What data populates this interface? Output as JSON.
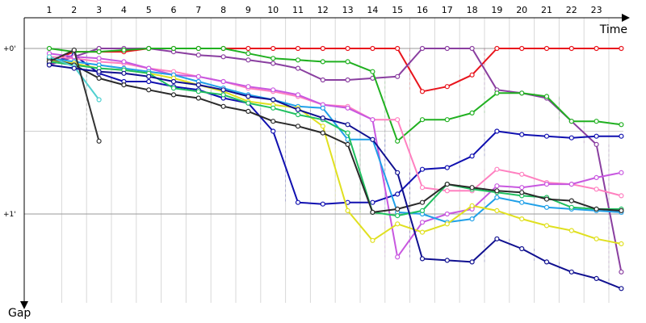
{
  "chart_data": {
    "type": "line",
    "xlabel": "Time",
    "ylabel": "Gap",
    "x_ticks": [
      "1",
      "2",
      "3",
      "4",
      "5",
      "6",
      "7",
      "8",
      "9",
      "10",
      "11",
      "12",
      "13",
      "14",
      "15",
      "16",
      "17",
      "18",
      "19",
      "20",
      "21",
      "22",
      "23"
    ],
    "y_ticks": [
      {
        "value": 0,
        "label": "+0'"
      },
      {
        "value": 1,
        "label": "+1'"
      }
    ],
    "ylim": [
      -0.12,
      1.5
    ],
    "xlim": [
      0.5,
      24.5
    ],
    "grid": true,
    "legend": "none",
    "series": [
      {
        "color": "#e8141c",
        "points": [
          [
            1,
            0.08
          ],
          [
            2,
            0.02
          ],
          [
            3,
            0.02
          ],
          [
            4,
            0.02
          ],
          [
            5,
            0.0
          ],
          [
            6,
            0.0
          ],
          [
            7,
            0.0
          ],
          [
            8,
            0.0
          ],
          [
            9,
            0.0
          ],
          [
            10,
            0.0
          ],
          [
            11,
            0.0
          ],
          [
            12,
            0.0
          ],
          [
            13,
            0.0
          ],
          [
            14,
            0.0
          ],
          [
            15,
            0.0
          ],
          [
            16,
            0.26
          ],
          [
            17,
            0.23
          ],
          [
            18,
            0.16
          ],
          [
            19,
            0.0
          ],
          [
            20,
            0.0
          ],
          [
            21,
            0.0
          ],
          [
            22,
            0.0
          ],
          [
            23,
            0.0
          ],
          [
            24,
            0.0
          ]
        ]
      },
      {
        "color": "#8a3fa0",
        "points": [
          [
            1,
            0.1
          ],
          [
            2,
            0.05
          ],
          [
            3,
            0.0
          ],
          [
            4,
            0.0
          ],
          [
            5,
            0.0
          ],
          [
            6,
            0.02
          ],
          [
            7,
            0.04
          ],
          [
            8,
            0.05
          ],
          [
            9,
            0.07
          ],
          [
            10,
            0.09
          ],
          [
            11,
            0.12
          ],
          [
            12,
            0.19
          ],
          [
            13,
            0.19
          ],
          [
            14,
            0.18
          ],
          [
            15,
            0.17
          ],
          [
            16,
            0.0
          ],
          [
            17,
            0.0
          ],
          [
            18,
            0.0
          ],
          [
            19,
            0.25
          ],
          [
            20,
            0.27
          ],
          [
            21,
            0.3
          ],
          [
            22,
            0.44
          ],
          [
            23,
            0.58
          ],
          [
            24,
            1.35
          ]
        ]
      },
      {
        "color": "#20b020",
        "points": [
          [
            1,
            0.0
          ],
          [
            2,
            0.02
          ],
          [
            3,
            0.02
          ],
          [
            4,
            0.01
          ],
          [
            5,
            0.0
          ],
          [
            6,
            0.0
          ],
          [
            7,
            0.0
          ],
          [
            8,
            0.0
          ],
          [
            9,
            0.03
          ],
          [
            10,
            0.06
          ],
          [
            11,
            0.07
          ],
          [
            12,
            0.08
          ],
          [
            13,
            0.08
          ],
          [
            14,
            0.14
          ],
          [
            15,
            0.56
          ],
          [
            16,
            0.43
          ],
          [
            17,
            0.43
          ],
          [
            18,
            0.39
          ],
          [
            19,
            0.27
          ],
          [
            20,
            0.27
          ],
          [
            21,
            0.29
          ],
          [
            22,
            0.44
          ],
          [
            23,
            0.44
          ],
          [
            24,
            0.46
          ]
        ]
      },
      {
        "color": "#1010b0",
        "points": [
          [
            1,
            0.09
          ],
          [
            2,
            0.04
          ],
          [
            3,
            0.15
          ],
          [
            4,
            0.2
          ],
          [
            5,
            0.2
          ],
          [
            6,
            0.23
          ],
          [
            7,
            0.25
          ],
          [
            8,
            0.3
          ],
          [
            9,
            0.33
          ],
          [
            10,
            0.5
          ],
          [
            11,
            0.93
          ],
          [
            12,
            0.94
          ],
          [
            13,
            0.93
          ],
          [
            14,
            0.93
          ],
          [
            15,
            0.88
          ],
          [
            16,
            0.73
          ],
          [
            17,
            0.72
          ],
          [
            18,
            0.65
          ],
          [
            19,
            0.5
          ],
          [
            20,
            0.52
          ],
          [
            21,
            0.53
          ],
          [
            22,
            0.54
          ],
          [
            23,
            0.53
          ],
          [
            24,
            0.53
          ]
        ]
      },
      {
        "color": "#ff80c0",
        "points": [
          [
            1,
            0.05
          ],
          [
            2,
            0.06
          ],
          [
            3,
            0.08
          ],
          [
            4,
            0.09
          ],
          [
            5,
            0.12
          ],
          [
            6,
            0.14
          ],
          [
            7,
            0.17
          ],
          [
            8,
            0.2
          ],
          [
            9,
            0.24
          ],
          [
            10,
            0.26
          ],
          [
            11,
            0.29
          ],
          [
            12,
            0.34
          ],
          [
            13,
            0.35
          ],
          [
            14,
            0.43
          ],
          [
            15,
            0.43
          ],
          [
            16,
            0.84
          ],
          [
            17,
            0.86
          ],
          [
            18,
            0.86
          ],
          [
            19,
            0.73
          ],
          [
            20,
            0.76
          ],
          [
            21,
            0.81
          ],
          [
            22,
            0.82
          ],
          [
            23,
            0.85
          ],
          [
            24,
            0.89
          ]
        ]
      },
      {
        "color": "#c858e0",
        "points": [
          [
            1,
            0.03
          ],
          [
            2,
            0.05
          ],
          [
            3,
            0.06
          ],
          [
            4,
            0.08
          ],
          [
            5,
            0.12
          ],
          [
            6,
            0.16
          ],
          [
            7,
            0.17
          ],
          [
            8,
            0.2
          ],
          [
            9,
            0.23
          ],
          [
            10,
            0.25
          ],
          [
            11,
            0.28
          ],
          [
            12,
            0.34
          ],
          [
            13,
            0.36
          ],
          [
            14,
            0.43
          ],
          [
            15,
            1.26
          ],
          [
            16,
            1.05
          ],
          [
            17,
            1.0
          ],
          [
            18,
            0.97
          ],
          [
            19,
            0.83
          ],
          [
            20,
            0.84
          ],
          [
            21,
            0.82
          ],
          [
            22,
            0.82
          ],
          [
            23,
            0.78
          ],
          [
            24,
            0.75
          ]
        ]
      },
      {
        "color": "#20a0e8",
        "points": [
          [
            1,
            0.06
          ],
          [
            2,
            0.08
          ],
          [
            3,
            0.1
          ],
          [
            4,
            0.12
          ],
          [
            5,
            0.14
          ],
          [
            6,
            0.16
          ],
          [
            7,
            0.2
          ],
          [
            8,
            0.24
          ],
          [
            9,
            0.28
          ],
          [
            10,
            0.31
          ],
          [
            11,
            0.35
          ],
          [
            12,
            0.36
          ],
          [
            13,
            0.55
          ],
          [
            14,
            0.55
          ],
          [
            15,
            0.99
          ],
          [
            16,
            1.0
          ],
          [
            17,
            1.05
          ],
          [
            18,
            1.03
          ],
          [
            19,
            0.9
          ],
          [
            20,
            0.93
          ],
          [
            21,
            0.96
          ],
          [
            22,
            0.97
          ],
          [
            23,
            0.98
          ],
          [
            24,
            0.99
          ]
        ]
      },
      {
        "color": "#e0e020",
        "points": [
          [
            1,
            0.07
          ],
          [
            2,
            0.09
          ],
          [
            3,
            0.12
          ],
          [
            4,
            0.13
          ],
          [
            5,
            0.15
          ],
          [
            6,
            0.18
          ],
          [
            7,
            0.22
          ],
          [
            8,
            0.26
          ],
          [
            9,
            0.32
          ],
          [
            10,
            0.34
          ],
          [
            11,
            0.36
          ],
          [
            12,
            0.47
          ],
          [
            13,
            0.98
          ],
          [
            14,
            1.16
          ],
          [
            15,
            1.06
          ],
          [
            16,
            1.11
          ],
          [
            17,
            1.06
          ],
          [
            18,
            0.95
          ],
          [
            19,
            0.98
          ],
          [
            20,
            1.03
          ],
          [
            21,
            1.07
          ],
          [
            22,
            1.1
          ],
          [
            23,
            1.15
          ],
          [
            24,
            1.18
          ]
        ]
      },
      {
        "color": "#20c060",
        "points": [
          [
            1,
            0.08
          ],
          [
            2,
            0.1
          ],
          [
            3,
            0.12
          ],
          [
            4,
            0.13
          ],
          [
            5,
            0.15
          ],
          [
            6,
            0.24
          ],
          [
            7,
            0.26
          ],
          [
            8,
            0.28
          ],
          [
            9,
            0.33
          ],
          [
            10,
            0.36
          ],
          [
            11,
            0.4
          ],
          [
            12,
            0.43
          ],
          [
            13,
            0.51
          ],
          [
            14,
            0.99
          ],
          [
            15,
            1.01
          ],
          [
            16,
            0.98
          ],
          [
            17,
            0.82
          ],
          [
            18,
            0.85
          ],
          [
            19,
            0.87
          ],
          [
            20,
            0.89
          ],
          [
            21,
            0.9
          ],
          [
            22,
            0.96
          ],
          [
            23,
            0.97
          ],
          [
            24,
            0.97
          ]
        ]
      },
      {
        "color": "#2a2a2a",
        "points": [
          [
            1,
            0.06
          ],
          [
            2,
            0.1
          ],
          [
            3,
            0.18
          ],
          [
            4,
            0.22
          ],
          [
            5,
            0.25
          ],
          [
            6,
            0.28
          ],
          [
            7,
            0.3
          ],
          [
            8,
            0.35
          ],
          [
            9,
            0.38
          ],
          [
            10,
            0.44
          ],
          [
            11,
            0.47
          ],
          [
            12,
            0.51
          ],
          [
            13,
            0.58
          ],
          [
            14,
            0.99
          ],
          [
            15,
            0.97
          ],
          [
            16,
            0.93
          ],
          [
            17,
            0.82
          ],
          [
            18,
            0.84
          ],
          [
            19,
            0.86
          ],
          [
            20,
            0.87
          ],
          [
            21,
            0.91
          ],
          [
            22,
            0.92
          ],
          [
            23,
            0.97
          ],
          [
            24,
            0.98
          ]
        ]
      },
      {
        "color": "#50d0d0",
        "points": [
          [
            1,
            0.05
          ],
          [
            2,
            0.11
          ],
          [
            3,
            0.31
          ]
        ]
      },
      {
        "color": "#333333",
        "points": [
          [
            1,
            0.08
          ],
          [
            2,
            0.01
          ],
          [
            3,
            0.56
          ]
        ]
      },
      {
        "color": "#101090",
        "points": [
          [
            1,
            0.1
          ],
          [
            2,
            0.12
          ],
          [
            3,
            0.14
          ],
          [
            4,
            0.15
          ],
          [
            5,
            0.17
          ],
          [
            6,
            0.2
          ],
          [
            7,
            0.22
          ],
          [
            8,
            0.25
          ],
          [
            9,
            0.29
          ],
          [
            10,
            0.31
          ],
          [
            11,
            0.37
          ],
          [
            12,
            0.42
          ],
          [
            13,
            0.46
          ],
          [
            14,
            0.55
          ],
          [
            15,
            0.75
          ],
          [
            16,
            1.27
          ],
          [
            17,
            1.28
          ],
          [
            18,
            1.29
          ],
          [
            19,
            1.15
          ],
          [
            20,
            1.21
          ],
          [
            21,
            1.29
          ],
          [
            22,
            1.35
          ],
          [
            23,
            1.39
          ],
          [
            24,
            1.45
          ]
        ]
      }
    ]
  }
}
